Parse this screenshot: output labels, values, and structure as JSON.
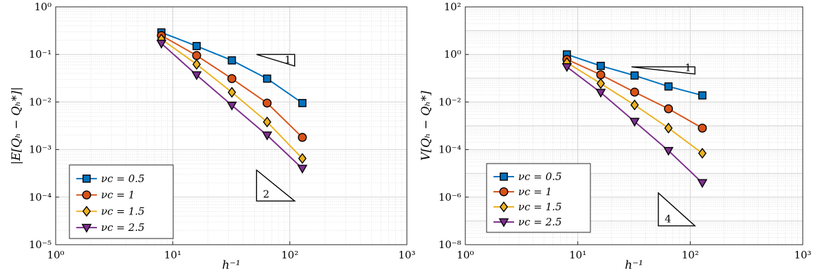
{
  "chart_data": [
    {
      "type": "line",
      "xlabel": "h⁻¹",
      "ylabel": "|E[Qₕ − Qₕ*]|",
      "xscale": "log",
      "yscale": "log",
      "xlim": [
        1,
        1000
      ],
      "ylim": [
        1e-05,
        1
      ],
      "x_ticks": [
        1,
        10,
        100,
        1000
      ],
      "x_tick_labels": [
        "10⁰",
        "10¹",
        "10²",
        "10³"
      ],
      "y_ticks": [
        1e-05,
        0.0001,
        0.001,
        0.01,
        0.1,
        1
      ],
      "y_tick_labels": [
        "10⁻⁵",
        "10⁻⁴",
        "10⁻³",
        "10⁻²",
        "10⁻¹",
        "10⁰"
      ],
      "grid": true,
      "legend_position": "bottom-left",
      "x": [
        8,
        16,
        32,
        64,
        128
      ],
      "series": [
        {
          "name": "νc = 0.5",
          "values": [
            0.29,
            0.15,
            0.075,
            0.031,
            0.0095
          ],
          "color": "#0072BD",
          "marker": "square"
        },
        {
          "name": "νc = 1",
          "values": [
            0.25,
            0.095,
            0.031,
            0.0095,
            0.0018
          ],
          "color": "#D95319",
          "marker": "circle"
        },
        {
          "name": "νc = 1.5",
          "values": [
            0.21,
            0.062,
            0.016,
            0.0038,
            0.00065
          ],
          "color": "#EDB120",
          "marker": "diamond"
        },
        {
          "name": "νc = 2.5",
          "values": [
            0.17,
            0.037,
            0.0085,
            0.002,
            0.0004
          ],
          "color": "#7E2F8E",
          "marker": "triangle-down"
        }
      ],
      "slope_triangles": [
        {
          "label": "1",
          "x": [
            52,
            110
          ],
          "y": [
            0.1,
            0.057
          ]
        },
        {
          "label": "2",
          "x": [
            52,
            110
          ],
          "y": [
            0.00037,
            8.3e-05
          ]
        }
      ]
    },
    {
      "type": "line",
      "xlabel": "h⁻¹",
      "ylabel": "V[Qₕ − Qₕ*]",
      "xscale": "log",
      "yscale": "log",
      "xlim": [
        1,
        1000
      ],
      "ylim": [
        1e-08,
        100
      ],
      "x_ticks": [
        1,
        10,
        100,
        1000
      ],
      "x_tick_labels": [
        "10⁰",
        "10¹",
        "10²",
        "10³"
      ],
      "y_ticks": [
        1e-08,
        1e-06,
        0.0001,
        0.01,
        1,
        100
      ],
      "y_tick_labels": [
        "10⁻⁸",
        "10⁻⁶",
        "10⁻⁴",
        "10⁻²",
        "10⁰",
        "10²"
      ],
      "grid": true,
      "legend_position": "bottom-left",
      "x": [
        8,
        16,
        32,
        64,
        128
      ],
      "series": [
        {
          "name": "νc = 0.5",
          "values": [
            1.0,
            0.33,
            0.13,
            0.045,
            0.019
          ],
          "color": "#0072BD",
          "marker": "square"
        },
        {
          "name": "νc = 1",
          "values": [
            0.62,
            0.14,
            0.026,
            0.0052,
            0.0008
          ],
          "color": "#D95319",
          "marker": "circle"
        },
        {
          "name": "νc = 1.5",
          "values": [
            0.45,
            0.06,
            0.0075,
            0.0008,
            7e-05
          ],
          "color": "#EDB120",
          "marker": "diamond"
        },
        {
          "name": "νc = 2.5",
          "values": [
            0.3,
            0.025,
            0.0015,
            9e-05,
            4e-06
          ],
          "color": "#7E2F8E",
          "marker": "triangle-down"
        }
      ],
      "slope_triangles": [
        {
          "label": "1",
          "x": [
            30,
            110
          ],
          "y": [
            0.3,
            0.15
          ]
        },
        {
          "label": "4",
          "x": [
            52,
            110
          ],
          "y": [
            1.5e-06,
            6.2e-08
          ]
        }
      ]
    }
  ]
}
